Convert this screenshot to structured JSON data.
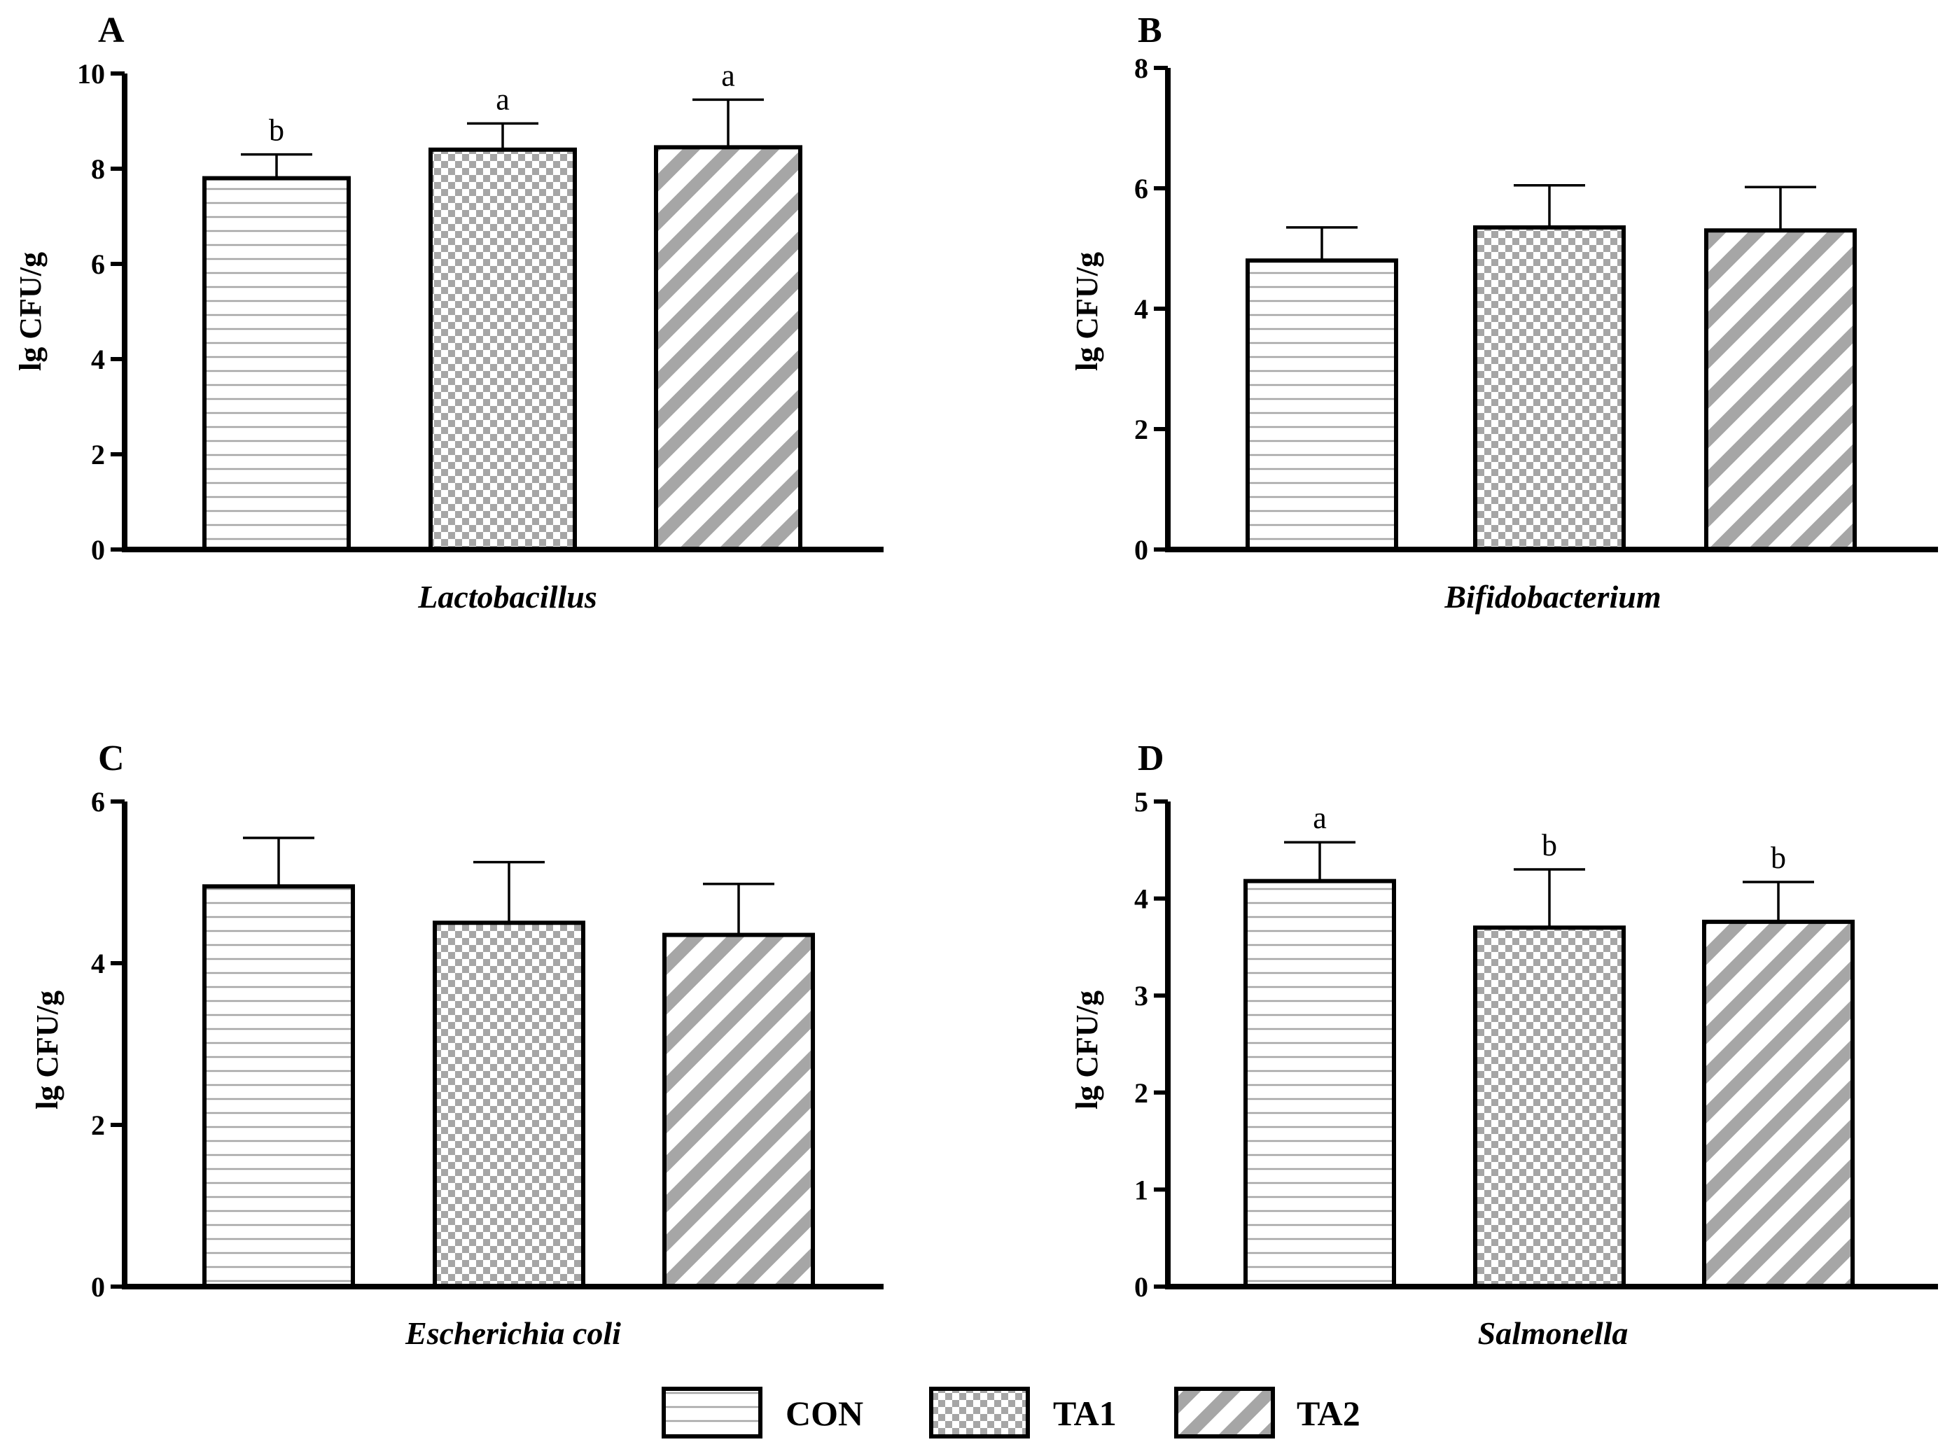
{
  "figure": {
    "legend": [
      {
        "name": "CON",
        "pattern": "hstripe"
      },
      {
        "name": "TA1",
        "pattern": "checker"
      },
      {
        "name": "TA2",
        "pattern": "diag"
      }
    ]
  },
  "colors": {
    "pattern_gray": "#a6a6a6",
    "axis": "#000000",
    "background": "#ffffff"
  },
  "chart_data": [
    {
      "panel": "A",
      "type": "bar",
      "title": "",
      "xlabel": "Lactobacillus",
      "ylabel": "lg CFU/g",
      "categories": [
        "CON",
        "TA1",
        "TA2"
      ],
      "values": [
        7.8,
        8.4,
        8.45
      ],
      "errors": [
        0.5,
        0.55,
        1.0
      ],
      "significance": [
        "b",
        "a",
        "a"
      ],
      "ylim": [
        0,
        10
      ],
      "yticks": [
        0,
        2,
        4,
        6,
        8,
        10
      ]
    },
    {
      "panel": "B",
      "type": "bar",
      "title": "",
      "xlabel": "Bifidobacterium",
      "ylabel": "lg CFU/g",
      "categories": [
        "CON",
        "TA1",
        "TA2"
      ],
      "values": [
        4.8,
        5.35,
        5.3
      ],
      "errors": [
        0.55,
        0.7,
        0.72
      ],
      "significance": [
        "",
        "",
        ""
      ],
      "ylim": [
        0,
        8
      ],
      "yticks": [
        0,
        2,
        4,
        6,
        8
      ]
    },
    {
      "panel": "C",
      "type": "bar",
      "title": "",
      "xlabel": "Escherichia coli",
      "ylabel": "lg CFU/g",
      "categories": [
        "CON",
        "TA1",
        "TA2"
      ],
      "values": [
        4.95,
        4.5,
        4.35
      ],
      "errors": [
        0.6,
        0.75,
        0.63
      ],
      "significance": [
        "",
        "",
        ""
      ],
      "ylim": [
        0,
        6
      ],
      "yticks": [
        0,
        2,
        4,
        6
      ]
    },
    {
      "panel": "D",
      "type": "bar",
      "title": "",
      "xlabel": "Salmonella",
      "ylabel": "lg CFU/g",
      "categories": [
        "CON",
        "TA1",
        "TA2"
      ],
      "values": [
        4.18,
        3.7,
        3.76
      ],
      "errors": [
        0.4,
        0.6,
        0.41
      ],
      "significance": [
        "a",
        "b",
        "b"
      ],
      "ylim": [
        0,
        5
      ],
      "yticks": [
        0,
        1,
        2,
        3,
        4,
        5
      ]
    }
  ]
}
